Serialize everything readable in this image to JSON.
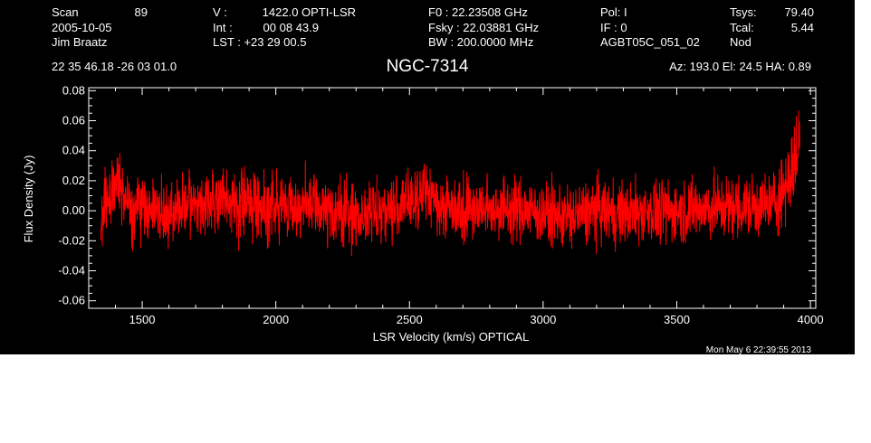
{
  "header": {
    "col1": [
      "Scan",
      "2005-10-05",
      "Jim Braatz"
    ],
    "scan_number": "89",
    "col2": [
      "V   :",
      "Int  :",
      "LST : +23 29 00.5"
    ],
    "col2_values": [
      "1422.0 OPTI-LSR",
      "00 08 43.9",
      ""
    ],
    "col3": [
      "F0   :  22.23508 GHz",
      "Fsky :  22.03881 GHz",
      "BW   : 200.0000 MHz"
    ],
    "col4": [
      "Pol:      I",
      "IF :       0",
      "AGBT05C_051_02"
    ],
    "col5": [
      "Tsys:",
      "Tcal:",
      "Nod"
    ],
    "col5_values": [
      "79.40",
      "5.44",
      ""
    ],
    "coords": "22 35 46.18   -26 03 01.0",
    "source": "NGC-7314",
    "pointing": "Az: 193.0   El:  24.5   HA:  0.89"
  },
  "footer": {
    "timestamp": "Mon May  6 22:39:55 2013"
  },
  "colors": {
    "background": "#000000",
    "axes": "#ffffff",
    "trace": "#ff0000"
  },
  "chart_data": {
    "type": "line",
    "title": "NGC-7314",
    "xlabel": "LSR Velocity (km/s) OPTICAL",
    "ylabel": "Flux Density (Jy)",
    "xlim": [
      1300,
      4020
    ],
    "ylim": [
      -0.065,
      0.082
    ],
    "xticks": [
      1500,
      2000,
      2500,
      3000,
      3500,
      4000
    ],
    "xtick_labels": [
      "1500",
      "2000",
      "2500",
      "3000",
      "3500",
      "4000"
    ],
    "yticks": [
      -0.06,
      -0.04,
      -0.02,
      0.0,
      0.02,
      0.04,
      0.06,
      0.08
    ],
    "ytick_labels": [
      "-0.06",
      "-0.04",
      "-0.02",
      "0.00",
      "0.02",
      "0.04",
      "0.06",
      "0.08"
    ],
    "grid": false,
    "series": [
      {
        "color": "#ff0000",
        "x": [
          1345,
          1360,
          1375,
          1390,
          1405,
          1420,
          1440,
          1460,
          1480,
          1500,
          1550,
          1600,
          1650,
          1700,
          1750,
          1800,
          1850,
          1900,
          1950,
          2000,
          2050,
          2100,
          2150,
          2200,
          2250,
          2300,
          2350,
          2400,
          2450,
          2500,
          2530,
          2560,
          2580,
          2600,
          2650,
          2700,
          2750,
          2800,
          2850,
          2900,
          2950,
          3000,
          3050,
          3100,
          3150,
          3200,
          3250,
          3300,
          3350,
          3400,
          3450,
          3500,
          3550,
          3600,
          3650,
          3700,
          3750,
          3800,
          3850,
          3880,
          3900,
          3915,
          3925,
          3935,
          3945,
          3955,
          3960
        ],
        "y": [
          0.0,
          0.008,
          0.006,
          0.012,
          0.02,
          0.01,
          0.006,
          0.004,
          0.003,
          0.002,
          0.0,
          -0.002,
          0.002,
          0.004,
          0.006,
          0.005,
          0.005,
          0.006,
          0.004,
          0.002,
          0.003,
          0.004,
          0.002,
          0.0,
          -0.002,
          -0.003,
          -0.002,
          0.0,
          0.002,
          0.005,
          0.01,
          0.014,
          0.01,
          0.004,
          0.003,
          0.002,
          0.001,
          0.002,
          0.002,
          0.001,
          0.0,
          -0.002,
          -0.003,
          -0.004,
          -0.002,
          0.0,
          -0.001,
          -0.002,
          -0.001,
          0.0,
          -0.001,
          0.0,
          0.001,
          0.001,
          0.002,
          0.003,
          0.002,
          0.003,
          0.004,
          0.008,
          0.015,
          0.02,
          0.024,
          0.028,
          0.034,
          0.042,
          0.05
        ]
      }
    ]
  }
}
